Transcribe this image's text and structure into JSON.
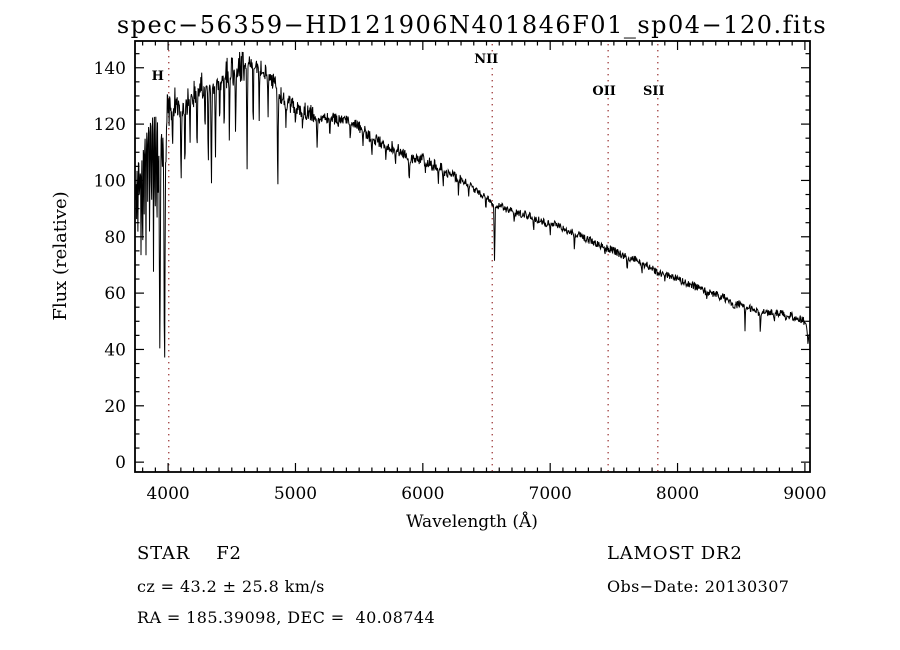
{
  "title": "spec−56359−HD121906N401846F01_sp04−120.fits",
  "annotations": {
    "class_label": "STAR    F2",
    "survey": "LAMOST DR2",
    "cz": "cz = 43.2 ± 25.8 km/s",
    "obs_date": "Obs−Date: 20130307",
    "coords": "RA = 185.39098, DEC =  40.08744"
  },
  "chart_data": {
    "type": "line",
    "title": "spec−56359−HD121906N401846F01_sp04−120.fits",
    "xlabel": "Wavelength (Å)",
    "ylabel": "Flux (relative)",
    "xlim": [
      3740,
      9040
    ],
    "ylim": [
      -3.5,
      149.5
    ],
    "xticks": [
      4000,
      5000,
      6000,
      7000,
      8000,
      9000
    ],
    "yticks": [
      0,
      20,
      40,
      60,
      80,
      100,
      120,
      140
    ],
    "minor_tick_step_x": 100,
    "minor_tick_step_y": 5,
    "line_color": "#000000",
    "marker_color": "#a03c3c",
    "background": "#ffffff",
    "legend": "none",
    "grid": false,
    "spectral_lines": [
      {
        "label": "H",
        "wavelength": 4005,
        "label_dx": -11,
        "label_y": 80
      },
      {
        "label": "NII",
        "wavelength": 6545,
        "label_dx": -6,
        "label_y": 63
      },
      {
        "label": "OII",
        "wavelength": 7455,
        "label_dx": -4,
        "label_y": 95
      },
      {
        "label": "SII",
        "wavelength": 7845,
        "label_dx": -4,
        "label_y": 95
      }
    ],
    "continuum": [
      [
        3740,
        100
      ],
      [
        3755,
        106
      ],
      [
        3775,
        110
      ],
      [
        3800,
        112
      ],
      [
        3825,
        116
      ],
      [
        3850,
        120
      ],
      [
        3875,
        122
      ],
      [
        3900,
        124
      ],
      [
        3925,
        122
      ],
      [
        3950,
        116
      ],
      [
        3975,
        114
      ],
      [
        4000,
        124
      ],
      [
        4050,
        127
      ],
      [
        4100,
        127
      ],
      [
        4150,
        129
      ],
      [
        4200,
        131
      ],
      [
        4250,
        133
      ],
      [
        4300,
        134
      ],
      [
        4350,
        134
      ],
      [
        4400,
        136
      ],
      [
        4450,
        138
      ],
      [
        4500,
        139
      ],
      [
        4550,
        140
      ],
      [
        4600,
        141
      ],
      [
        4650,
        142
      ],
      [
        4700,
        141
      ],
      [
        4750,
        139
      ],
      [
        4800,
        137
      ],
      [
        4850,
        133
      ],
      [
        4900,
        129
      ],
      [
        4950,
        127
      ],
      [
        5000,
        126
      ],
      [
        5050,
        125
      ],
      [
        5100,
        124
      ],
      [
        5150,
        123
      ],
      [
        5200,
        121
      ],
      [
        5250,
        122
      ],
      [
        5300,
        122
      ],
      [
        5350,
        121
      ],
      [
        5400,
        121
      ],
      [
        5450,
        120
      ],
      [
        5500,
        119
      ],
      [
        5550,
        117
      ],
      [
        5600,
        115
      ],
      [
        5650,
        114
      ],
      [
        5700,
        113
      ],
      [
        5750,
        112
      ],
      [
        5800,
        111
      ],
      [
        5850,
        109
      ],
      [
        5900,
        107
      ],
      [
        5950,
        107
      ],
      [
        6000,
        108
      ],
      [
        6050,
        106
      ],
      [
        6100,
        105
      ],
      [
        6150,
        104
      ],
      [
        6200,
        103
      ],
      [
        6250,
        101
      ],
      [
        6300,
        100
      ],
      [
        6350,
        99
      ],
      [
        6400,
        97
      ],
      [
        6450,
        95
      ],
      [
        6500,
        94
      ],
      [
        6550,
        92
      ],
      [
        6600,
        91
      ],
      [
        6650,
        90
      ],
      [
        6700,
        89
      ],
      [
        6750,
        88
      ],
      [
        6800,
        88
      ],
      [
        6850,
        87
      ],
      [
        6900,
        86
      ],
      [
        6950,
        85
      ],
      [
        7000,
        85
      ],
      [
        7050,
        84
      ],
      [
        7100,
        83
      ],
      [
        7150,
        82
      ],
      [
        7200,
        81
      ],
      [
        7250,
        80
      ],
      [
        7300,
        79
      ],
      [
        7350,
        78
      ],
      [
        7400,
        77
      ],
      [
        7450,
        76
      ],
      [
        7500,
        75
      ],
      [
        7550,
        74
      ],
      [
        7600,
        73
      ],
      [
        7650,
        72
      ],
      [
        7700,
        71
      ],
      [
        7750,
        70
      ],
      [
        7800,
        69
      ],
      [
        7850,
        67
      ],
      [
        7900,
        67
      ],
      [
        7950,
        66
      ],
      [
        8000,
        65
      ],
      [
        8050,
        64
      ],
      [
        8100,
        63
      ],
      [
        8150,
        62
      ],
      [
        8200,
        61
      ],
      [
        8250,
        60
      ],
      [
        8300,
        60
      ],
      [
        8350,
        59
      ],
      [
        8400,
        57
      ],
      [
        8450,
        56
      ],
      [
        8500,
        56
      ],
      [
        8550,
        55
      ],
      [
        8600,
        54
      ],
      [
        8650,
        53
      ],
      [
        8700,
        53
      ],
      [
        8750,
        53
      ],
      [
        8800,
        53
      ],
      [
        8850,
        52
      ],
      [
        8900,
        52
      ],
      [
        8950,
        51
      ],
      [
        9000,
        50
      ],
      [
        9040,
        46
      ]
    ],
    "absorption_lines": [
      [
        3752,
        86,
        5
      ],
      [
        3762,
        78,
        5
      ],
      [
        3775,
        90,
        5
      ],
      [
        3788,
        72,
        5
      ],
      [
        3800,
        68,
        5
      ],
      [
        3812,
        88,
        5
      ],
      [
        3826,
        74,
        5
      ],
      [
        3840,
        92,
        5
      ],
      [
        3855,
        76,
        5
      ],
      [
        3870,
        84,
        5
      ],
      [
        3885,
        66,
        5
      ],
      [
        3898,
        80,
        5
      ],
      [
        3912,
        74,
        5
      ],
      [
        3922,
        86,
        5
      ],
      [
        3935,
        40,
        10
      ],
      [
        3972,
        35,
        10
      ],
      [
        4035,
        112,
        7
      ],
      [
        4102,
        100,
        8
      ],
      [
        4132,
        104,
        7
      ],
      [
        4172,
        113,
        6
      ],
      [
        4227,
        110,
        7
      ],
      [
        4290,
        116,
        6
      ],
      [
        4315,
        105,
        7
      ],
      [
        4340,
        99,
        8
      ],
      [
        4372,
        108,
        7
      ],
      [
        4405,
        119,
        6
      ],
      [
        4440,
        116,
        6
      ],
      [
        4481,
        113,
        6
      ],
      [
        4530,
        117,
        7
      ],
      [
        4620,
        103,
        7
      ],
      [
        4668,
        117,
        6
      ],
      [
        4715,
        121,
        6
      ],
      [
        4785,
        122,
        6
      ],
      [
        4861,
        97,
        8
      ],
      [
        4925,
        119,
        6
      ],
      [
        5000,
        120,
        6
      ],
      [
        5055,
        118,
        6
      ],
      [
        5170,
        112,
        8
      ],
      [
        5270,
        115,
        6
      ],
      [
        5430,
        114,
        6
      ],
      [
        5530,
        112,
        6
      ],
      [
        5600,
        109,
        7
      ],
      [
        5710,
        107,
        6
      ],
      [
        5785,
        105,
        6
      ],
      [
        5893,
        100,
        8
      ],
      [
        6020,
        102,
        6
      ],
      [
        6122,
        99,
        6
      ],
      [
        6160,
        98,
        6
      ],
      [
        6280,
        95,
        6
      ],
      [
        6360,
        94,
        6
      ],
      [
        6495,
        89,
        6
      ],
      [
        6563,
        71,
        8
      ],
      [
        6717,
        85,
        6
      ],
      [
        6870,
        82,
        7
      ],
      [
        7000,
        81,
        6
      ],
      [
        7190,
        76,
        7
      ],
      [
        7430,
        73,
        6
      ],
      [
        7605,
        68,
        7
      ],
      [
        7720,
        67,
        6
      ],
      [
        7900,
        64,
        6
      ],
      [
        8230,
        58,
        6
      ],
      [
        8330,
        57,
        6
      ],
      [
        8440,
        55,
        6
      ],
      [
        8530,
        47,
        6
      ],
      [
        8650,
        46,
        6
      ],
      [
        8760,
        50,
        6
      ],
      [
        8850,
        50,
        6
      ],
      [
        9025,
        42,
        12
      ]
    ],
    "noise_regions": [
      [
        4000,
        11
      ],
      [
        4650,
        6
      ],
      [
        5200,
        3.2
      ],
      [
        6300,
        2.2
      ],
      [
        9045,
        1.4
      ]
    ],
    "sample_step": 3.5,
    "seed": 20130307
  }
}
